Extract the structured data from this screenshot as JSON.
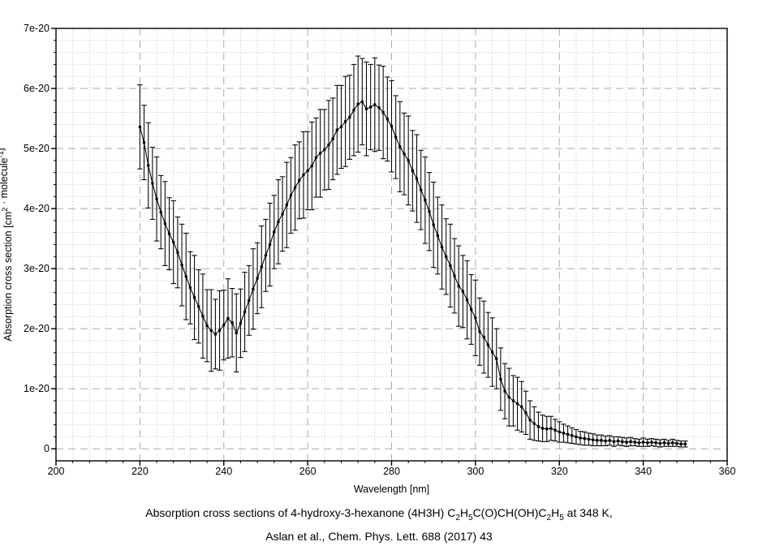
{
  "page": {
    "background": "#ffffff",
    "foreground": "#000000"
  },
  "caption": {
    "line1": [
      {
        "t": "Absorption cross sections of 4-hydroxy-3-hexanone (4H3H) C"
      },
      {
        "t": "2",
        "sub": true
      },
      {
        "t": "H"
      },
      {
        "t": "5",
        "sub": true
      },
      {
        "t": "C(O)CH(OH)C"
      },
      {
        "t": "2",
        "sub": true
      },
      {
        "t": "H"
      },
      {
        "t": "5",
        "sub": true
      },
      {
        "t": " at 348 K,"
      }
    ],
    "line2": "Aslan et al., Chem. Phys. Lett. 688 (2017) 43"
  },
  "chart_data": {
    "type": "line",
    "title": "",
    "xlabel": "Wavelength [nm]",
    "ylabel_segments": [
      {
        "t": "Absorption cross section [cm"
      },
      {
        "t": "2",
        "sup": true
      },
      {
        "t": " · molecule"
      },
      {
        "t": "-1",
        "sup": true
      },
      {
        "t": "]"
      }
    ],
    "value_units": "cm^2/molecule, values and errors listed in units of 1e-20",
    "xlim": [
      200,
      360
    ],
    "ylim": [
      -0.2,
      7.0
    ],
    "x_ticks": [
      {
        "v": 200,
        "label": "200"
      },
      {
        "v": 220,
        "label": "220"
      },
      {
        "v": 240,
        "label": "240"
      },
      {
        "v": 260,
        "label": "260"
      },
      {
        "v": 280,
        "label": "280"
      },
      {
        "v": 300,
        "label": "300"
      },
      {
        "v": 320,
        "label": "320"
      },
      {
        "v": 340,
        "label": "340"
      },
      {
        "v": 360,
        "label": "360"
      }
    ],
    "y_ticks": [
      {
        "v": 0,
        "label": "0"
      },
      {
        "v": 1,
        "label": "1e-20"
      },
      {
        "v": 2,
        "label": "2e-20"
      },
      {
        "v": 3,
        "label": "3e-20"
      },
      {
        "v": 4,
        "label": "4e-20"
      },
      {
        "v": 5,
        "label": "5e-20"
      },
      {
        "v": 6,
        "label": "6e-20"
      },
      {
        "v": 7,
        "label": "7e-20"
      }
    ],
    "x_minor_step": 4,
    "y_minor_step": 0.2,
    "grid": {
      "major_color": "#aaaaaa",
      "minor_color": "#c6c6c6",
      "major_dash": "9 6",
      "minor_dash": "1.2 2.6"
    },
    "axis_color": "#000000",
    "error_bars": true,
    "marker": "square",
    "series": [
      {
        "name": "4H3H absorption cross section at 348 K",
        "color": "#000000",
        "points": [
          [
            220,
            5.36,
            0.7
          ],
          [
            221,
            5.1,
            0.62
          ],
          [
            222,
            4.72,
            0.71
          ],
          [
            223,
            4.42,
            0.6
          ],
          [
            224,
            4.16,
            0.7
          ],
          [
            225,
            3.94,
            0.61
          ],
          [
            226,
            3.75,
            0.7
          ],
          [
            227,
            3.58,
            0.6
          ],
          [
            228,
            3.44,
            0.69
          ],
          [
            229,
            3.27,
            0.59
          ],
          [
            230,
            3.06,
            0.68
          ],
          [
            231,
            2.87,
            0.72
          ],
          [
            232,
            2.68,
            0.6
          ],
          [
            233,
            2.52,
            0.7
          ],
          [
            234,
            2.37,
            0.61
          ],
          [
            235,
            2.21,
            0.7
          ],
          [
            236,
            2.05,
            0.6
          ],
          [
            237,
            1.97,
            0.68
          ],
          [
            238,
            1.91,
            0.58
          ],
          [
            239,
            1.97,
            0.66
          ],
          [
            240,
            2.06,
            0.58
          ],
          [
            241,
            2.17,
            0.66
          ],
          [
            242,
            2.1,
            0.57
          ],
          [
            243,
            1.93,
            0.65
          ],
          [
            244,
            2.09,
            0.57
          ],
          [
            245,
            2.28,
            0.66
          ],
          [
            246,
            2.47,
            0.58
          ],
          [
            247,
            2.66,
            0.67
          ],
          [
            248,
            2.84,
            0.59
          ],
          [
            249,
            3.03,
            0.68
          ],
          [
            250,
            3.22,
            0.6
          ],
          [
            251,
            3.4,
            0.69
          ],
          [
            252,
            3.61,
            0.61
          ],
          [
            253,
            3.78,
            0.7
          ],
          [
            254,
            3.91,
            0.62
          ],
          [
            255,
            4.06,
            0.71
          ],
          [
            256,
            4.22,
            0.63
          ],
          [
            257,
            4.35,
            0.71
          ],
          [
            258,
            4.47,
            0.64
          ],
          [
            259,
            4.56,
            0.72
          ],
          [
            260,
            4.63,
            0.65
          ],
          [
            261,
            4.71,
            0.73
          ],
          [
            262,
            4.85,
            0.66
          ],
          [
            263,
            4.92,
            0.73
          ],
          [
            264,
            4.98,
            0.67
          ],
          [
            265,
            5.06,
            0.74
          ],
          [
            266,
            5.16,
            0.68
          ],
          [
            267,
            5.31,
            0.74
          ],
          [
            268,
            5.36,
            0.69
          ],
          [
            269,
            5.45,
            0.75
          ],
          [
            270,
            5.52,
            0.7
          ],
          [
            271,
            5.64,
            0.76
          ],
          [
            272,
            5.74,
            0.8
          ],
          [
            273,
            5.78,
            0.72
          ],
          [
            274,
            5.66,
            0.78
          ],
          [
            275,
            5.69,
            0.71
          ],
          [
            276,
            5.73,
            0.78
          ],
          [
            277,
            5.68,
            0.71
          ],
          [
            278,
            5.6,
            0.77
          ],
          [
            279,
            5.49,
            0.7
          ],
          [
            280,
            5.37,
            0.76
          ],
          [
            281,
            5.19,
            0.69
          ],
          [
            282,
            5.03,
            0.75
          ],
          [
            283,
            4.91,
            0.68
          ],
          [
            284,
            4.8,
            0.74
          ],
          [
            285,
            4.63,
            0.67
          ],
          [
            286,
            4.5,
            0.73
          ],
          [
            287,
            4.31,
            0.66
          ],
          [
            288,
            4.14,
            0.72
          ],
          [
            289,
            3.95,
            0.65
          ],
          [
            290,
            3.73,
            0.71
          ],
          [
            291,
            3.55,
            0.64
          ],
          [
            292,
            3.36,
            0.7
          ],
          [
            293,
            3.2,
            0.63
          ],
          [
            294,
            3.05,
            0.69
          ],
          [
            295,
            2.88,
            0.62
          ],
          [
            296,
            2.71,
            0.67
          ],
          [
            297,
            2.62,
            0.6
          ],
          [
            298,
            2.48,
            0.65
          ],
          [
            299,
            2.32,
            0.58
          ],
          [
            300,
            2.18,
            0.63
          ],
          [
            301,
            1.95,
            0.56
          ],
          [
            302,
            1.86,
            0.6
          ],
          [
            303,
            1.73,
            0.54
          ],
          [
            304,
            1.61,
            0.57
          ],
          [
            305,
            1.5,
            0.5
          ],
          [
            306,
            1.16,
            0.52
          ],
          [
            307,
            0.96,
            0.46
          ],
          [
            308,
            0.86,
            0.48
          ],
          [
            309,
            0.8,
            0.42
          ],
          [
            310,
            0.75,
            0.44
          ],
          [
            311,
            0.7,
            0.42
          ],
          [
            312,
            0.6,
            0.36
          ],
          [
            313,
            0.48,
            0.32
          ],
          [
            314,
            0.42,
            0.28
          ],
          [
            315,
            0.37,
            0.24
          ],
          [
            316,
            0.34,
            0.22
          ],
          [
            317,
            0.33,
            0.21
          ],
          [
            318,
            0.34,
            0.2
          ],
          [
            319,
            0.31,
            0.18
          ],
          [
            320,
            0.28,
            0.17
          ],
          [
            321,
            0.26,
            0.15
          ],
          [
            322,
            0.24,
            0.14
          ],
          [
            323,
            0.22,
            0.13
          ],
          [
            324,
            0.2,
            0.12
          ],
          [
            325,
            0.18,
            0.11
          ],
          [
            326,
            0.17,
            0.11
          ],
          [
            327,
            0.16,
            0.1
          ],
          [
            328,
            0.15,
            0.1
          ],
          [
            329,
            0.14,
            0.09
          ],
          [
            330,
            0.14,
            0.09
          ],
          [
            331,
            0.13,
            0.08
          ],
          [
            332,
            0.14,
            0.08
          ],
          [
            333,
            0.12,
            0.08
          ],
          [
            334,
            0.13,
            0.07
          ],
          [
            335,
            0.12,
            0.07
          ],
          [
            336,
            0.11,
            0.07
          ],
          [
            337,
            0.12,
            0.07
          ],
          [
            338,
            0.11,
            0.06
          ],
          [
            339,
            0.1,
            0.06
          ],
          [
            340,
            0.11,
            0.07
          ],
          [
            341,
            0.1,
            0.06
          ],
          [
            342,
            0.11,
            0.06
          ],
          [
            343,
            0.1,
            0.06
          ],
          [
            344,
            0.09,
            0.06
          ],
          [
            345,
            0.1,
            0.06
          ],
          [
            346,
            0.09,
            0.05
          ],
          [
            347,
            0.1,
            0.06
          ],
          [
            348,
            0.09,
            0.05
          ],
          [
            349,
            0.08,
            0.05
          ],
          [
            350,
            0.08,
            0.05
          ]
        ]
      }
    ]
  }
}
